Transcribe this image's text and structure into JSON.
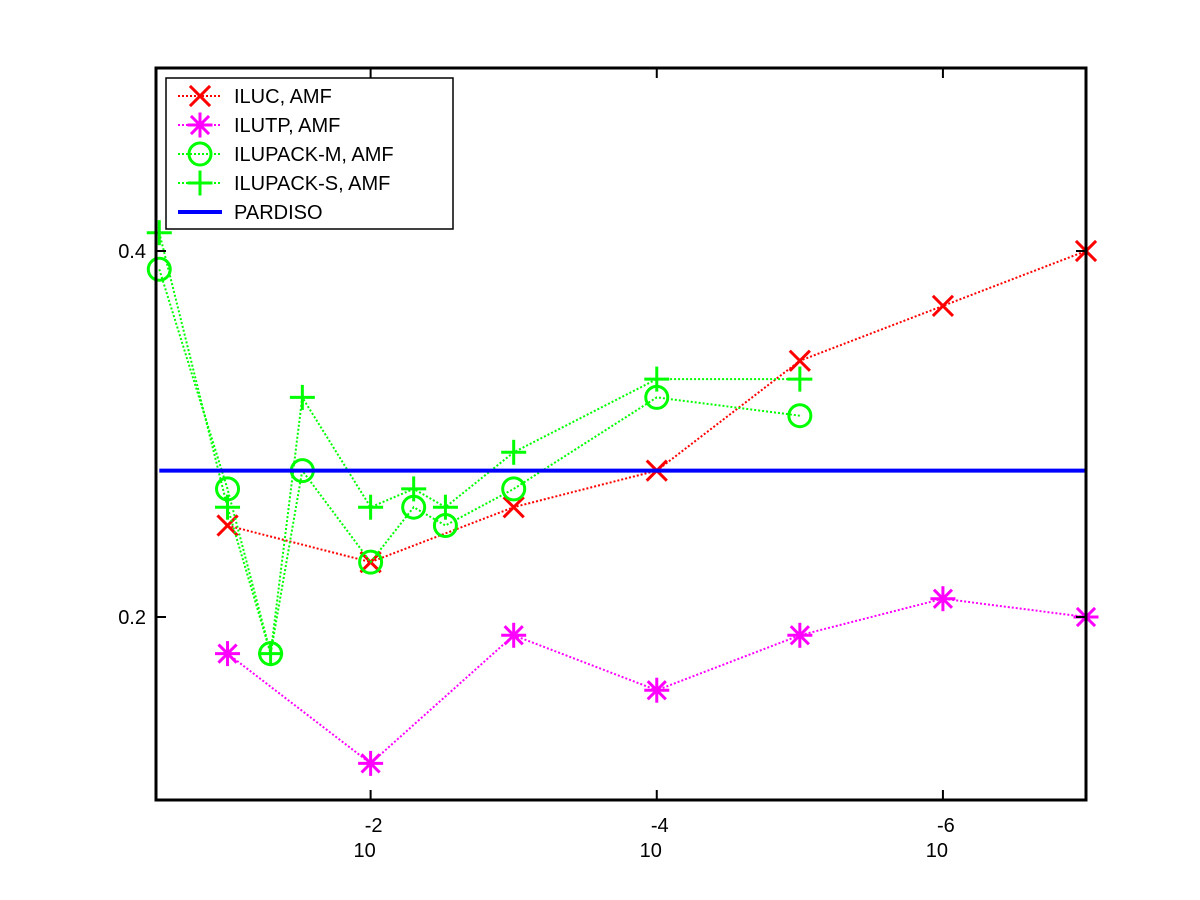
{
  "chart_data": {
    "type": "line",
    "title": "",
    "xlabel": "",
    "ylabel": "",
    "xscale": "log-reversed",
    "xlim": [
      0.3162,
      1e-07
    ],
    "ylim": [
      0.1,
      0.5
    ],
    "grid": false,
    "legend": "top-left",
    "x_ticks": [
      {
        "value": 0.01,
        "base": "10",
        "exp": "-2"
      },
      {
        "value": 0.0001,
        "base": "10",
        "exp": "-4"
      },
      {
        "value": 1e-06,
        "base": "10",
        "exp": "-6"
      }
    ],
    "y_ticks": [
      {
        "value": 0.2,
        "label": "0.2"
      },
      {
        "value": 0.4,
        "label": "0.4"
      }
    ],
    "series": [
      {
        "name": "ILUC, AMF",
        "color": "#ff0000",
        "marker": "x",
        "dotted": true,
        "x": [
          0.1,
          0.01,
          0.001,
          0.0001,
          1e-05,
          1e-06,
          1e-07
        ],
        "y": [
          0.25,
          0.23,
          0.26,
          0.28,
          0.34,
          0.37,
          0.4
        ]
      },
      {
        "name": "ILUTP, AMF",
        "color": "#ff00ff",
        "marker": "asterisk",
        "dotted": true,
        "x": [
          0.1,
          0.01,
          0.001,
          0.0001,
          1e-05,
          1e-06,
          1e-07
        ],
        "y": [
          0.18,
          0.12,
          0.19,
          0.16,
          0.19,
          0.21,
          0.2
        ]
      },
      {
        "name": "ILUPACK-M, AMF",
        "color": "#00ff00",
        "marker": "circle",
        "dotted": true,
        "x": [
          0.3,
          0.1,
          0.05,
          0.03,
          0.01,
          0.005,
          0.003,
          0.001,
          0.0001,
          1e-05
        ],
        "y": [
          0.39,
          0.27,
          0.18,
          0.28,
          0.23,
          0.26,
          0.25,
          0.27,
          0.32,
          0.31
        ]
      },
      {
        "name": "ILUPACK-S, AMF",
        "color": "#00ff00",
        "marker": "plus",
        "dotted": true,
        "x": [
          0.3,
          0.1,
          0.05,
          0.03,
          0.01,
          0.005,
          0.003,
          0.001,
          0.0001,
          1e-05
        ],
        "y": [
          0.41,
          0.26,
          0.18,
          0.32,
          0.26,
          0.27,
          0.26,
          0.29,
          0.33,
          0.33
        ]
      },
      {
        "name": "PARDISO",
        "color": "#0000ff",
        "marker": "none",
        "dotted": false,
        "x": [
          0.3,
          1e-07
        ],
        "y": [
          0.28,
          0.28
        ]
      }
    ]
  }
}
